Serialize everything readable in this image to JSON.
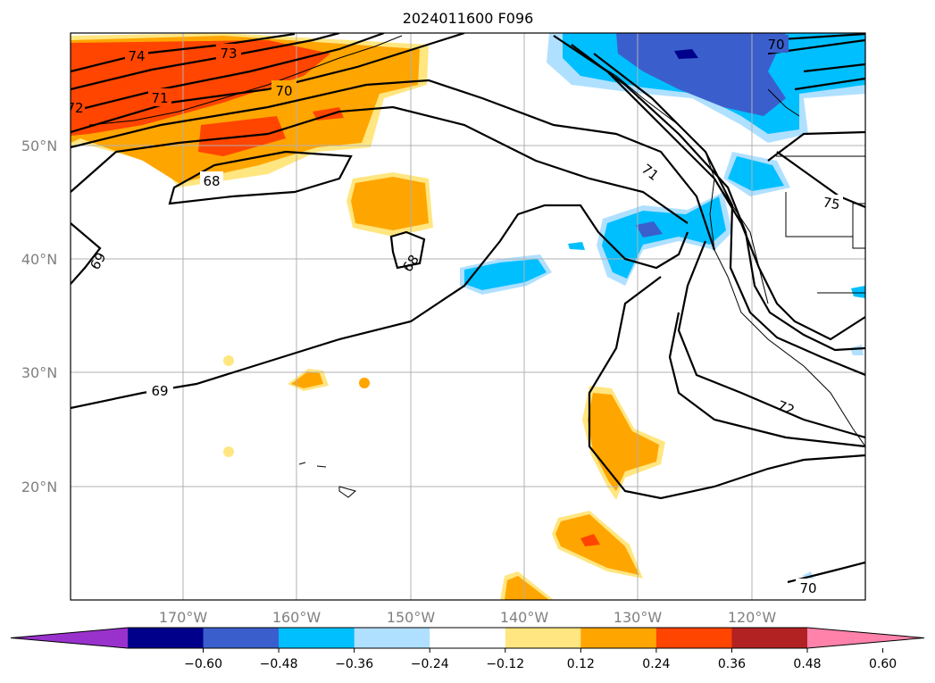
{
  "title": "2024011600 F096",
  "map": {
    "lat_labels": [
      "20°N",
      "30°N",
      "40°N",
      "50°N"
    ],
    "lon_labels": [
      "170°W",
      "160°W",
      "150°W",
      "140°W",
      "130°W",
      "120°W"
    ],
    "contour_labels": [
      "74",
      "73",
      "72",
      "71",
      "70",
      "68",
      "68",
      "69",
      "69",
      "71",
      "75",
      "72",
      "70",
      "70"
    ],
    "grid": true
  },
  "colorbar": {
    "ticks": [
      "−0.60",
      "−0.48",
      "−0.36",
      "−0.24",
      "−0.12",
      "0.12",
      "0.24",
      "0.36",
      "0.48",
      "0.60"
    ],
    "colors": [
      "#9932cc",
      "#00008b",
      "#3a5fcd",
      "#00bfff",
      "#b0e0ff",
      "#ffffff",
      "#ffe680",
      "#ffa500",
      "#ff4500",
      "#b22222",
      "#ff82ab"
    ],
    "extend": "both"
  },
  "shading_colors": {
    "light_yellow": "#ffe680",
    "orange": "#ffa500",
    "red_orange": "#ff4500",
    "light_blue": "#b0e0ff",
    "cyan": "#00bfff",
    "blue": "#3a5fcd",
    "dark_blue": "#00008b"
  }
}
